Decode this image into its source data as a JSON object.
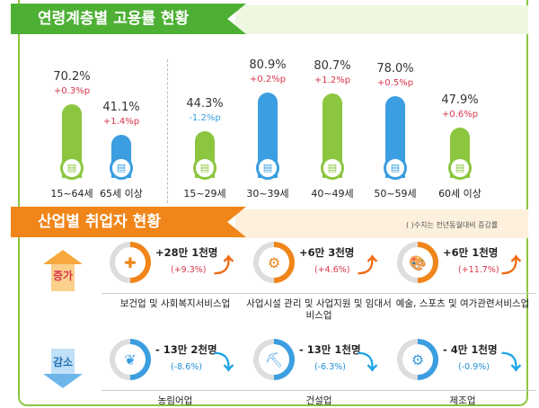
{
  "section1": {
    "title": "연령계층별 고용률 현황",
    "groups": [
      {
        "label": "15~64세",
        "value": "70.2%",
        "change": "+0.3%p",
        "rate": 70.2,
        "color": "#8cc63f",
        "change_color": "#d9364c"
      },
      {
        "label": "65세 이상",
        "value": "41.1%",
        "change": "+1.4%p",
        "rate": 41.1,
        "color": "#3b9ee0",
        "change_color": "#d9364c"
      },
      {
        "label": "15~29세",
        "value": "44.3%",
        "change": "-1.2%p",
        "rate": 44.3,
        "color": "#8cc63f",
        "change_color": "#3b9ee0"
      },
      {
        "label": "30~39세",
        "value": "80.9%",
        "change": "+0.2%p",
        "rate": 80.9,
        "color": "#3b9ee0",
        "change_color": "#d9364c"
      },
      {
        "label": "40~49세",
        "value": "80.7%",
        "change": "+1.2%p",
        "rate": 80.7,
        "color": "#8cc63f",
        "change_color": "#d9364c"
      },
      {
        "label": "50~59세",
        "value": "78.0%",
        "change": "+0.5%p",
        "rate": 78.0,
        "color": "#3b9ee0",
        "change_color": "#d9364c"
      },
      {
        "label": "60세 이상",
        "value": "47.9%",
        "change": "+0.6%p",
        "rate": 47.9,
        "color": "#8cc63f",
        "change_color": "#d9364c"
      }
    ]
  },
  "section2": {
    "title": "산업별 취업자 현황",
    "note": "( )수치는 전년동월대비 증감률",
    "increase_label": "증가",
    "decrease_label": "감소",
    "increase": [
      {
        "industry": "보건업 및 사회복지서비스업",
        "amount": "+28만 1천명",
        "pct": "(+9.3%)",
        "icon": "first-aid-kit-icon"
      },
      {
        "industry": "사업시설 관리 및 사업지원 및 임대서비스업",
        "amount": "+6만 3천명",
        "pct": "(+4.6%)",
        "icon": "business-support-icon"
      },
      {
        "industry": "예술, 스포츠 및 여가관련서비스업",
        "amount": "+6만 1천명",
        "pct": "(+11.7%)",
        "icon": "art-palette-icon"
      }
    ],
    "decrease": [
      {
        "industry": "농림어업",
        "amount": "- 13만 2천명",
        "pct": "(-8.6%)",
        "icon": "wheat-icon"
      },
      {
        "industry": "건설업",
        "amount": "- 13만 1천명",
        "pct": "(-6.3%)",
        "icon": "excavator-icon"
      },
      {
        "industry": "제조업",
        "amount": "- 4만 1천명",
        "pct": "(-0.9%)",
        "icon": "gears-icon"
      }
    ]
  },
  "colors": {
    "green": "#8cc63f",
    "blue": "#3b9ee0",
    "orange": "#f08519",
    "red": "#d9364c"
  }
}
